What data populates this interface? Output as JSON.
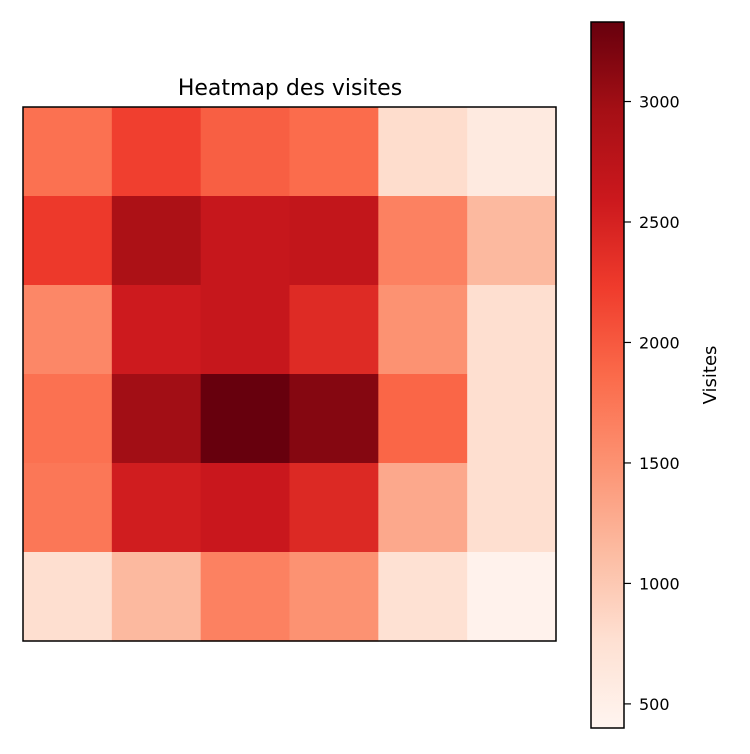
{
  "chart_data": {
    "type": "heatmap",
    "title": "Heatmap des visites",
    "colorbar_label": "Visites",
    "colormap": "Reds",
    "color_range": [
      400,
      3330
    ],
    "colorbar_ticks": [
      500,
      1000,
      1500,
      2000,
      2500,
      3000
    ],
    "x_ticks_visible": false,
    "y_ticks_visible": false,
    "rows": 6,
    "cols": 6,
    "values": [
      [
        1800,
        2200,
        1950,
        1850,
        800,
        600
      ],
      [
        2250,
        2900,
        2650,
        2680,
        1650,
        1150
      ],
      [
        1600,
        2580,
        2650,
        2400,
        1500,
        780
      ],
      [
        1800,
        2980,
        3330,
        3150,
        1900,
        780
      ],
      [
        1750,
        2550,
        2620,
        2420,
        1300,
        780
      ],
      [
        780,
        1150,
        1650,
        1500,
        750,
        450
      ]
    ]
  }
}
